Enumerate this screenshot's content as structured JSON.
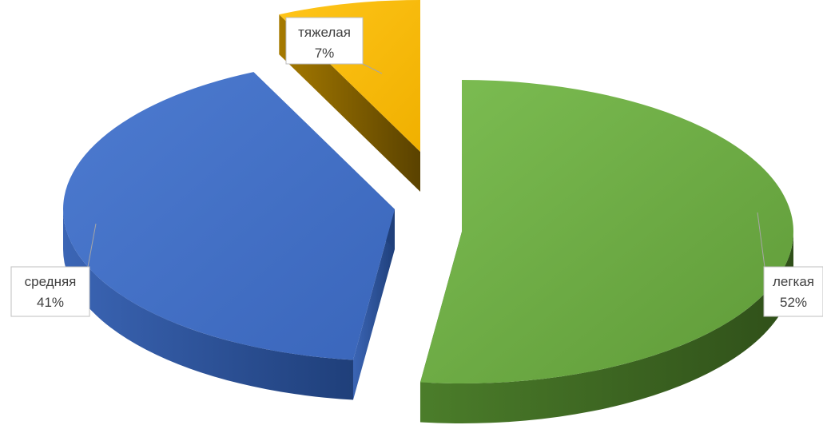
{
  "chart_data": {
    "type": "pie",
    "style": "3d-exploded",
    "categories": [
      "легкая",
      "средняя",
      "тяжелая"
    ],
    "values": [
      52,
      41,
      7
    ],
    "labels": [
      {
        "category": "легкая",
        "text": "52%"
      },
      {
        "category": "средняя",
        "text": "41%"
      },
      {
        "category": "тяжелая",
        "text": "7%"
      }
    ],
    "colors": {
      "легкая": "#70AD47",
      "средняя": "#4472C4",
      "тяжелая": "#FFC000"
    },
    "legend": "none",
    "title": ""
  }
}
